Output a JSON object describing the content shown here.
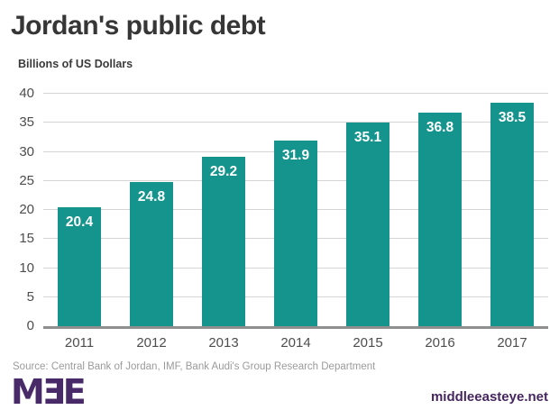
{
  "header": {
    "title": "Jordan's public debt",
    "subtitle": "Billions of US Dollars"
  },
  "chart_data": {
    "type": "bar",
    "title": "Jordan's public debt",
    "xlabel": "",
    "ylabel": "Billions of US Dollars",
    "categories": [
      "2011",
      "2012",
      "2013",
      "2014",
      "2015",
      "2016",
      "2017"
    ],
    "values": [
      20.4,
      24.8,
      29.2,
      31.9,
      35.1,
      36.8,
      38.5
    ],
    "value_labels": [
      "20.4",
      "24.8",
      "29.2",
      "31.9",
      "35.1",
      "36.8",
      "38.5"
    ],
    "ylim": [
      0,
      40
    ],
    "yticks": [
      0,
      5,
      10,
      15,
      20,
      25,
      30,
      35,
      40
    ],
    "grid": true,
    "legend": "none",
    "bar_color": "#14948d",
    "value_label_color": "#ffffff"
  },
  "footer": {
    "source": "Source: Central Bank of Jordan, IMF, Bank Audi's Group Research Department",
    "logo_text": "MƎE",
    "website": "middleeasteye.net"
  },
  "colors": {
    "accent_teal": "#14948d",
    "brand_purple": "#482a68",
    "title_text": "#363636",
    "axis_text": "#4d4d4d",
    "gridline": "#d4d4d4",
    "axis_line": "#8f8f8f",
    "source_text": "#9b9b9b",
    "background": "#ffffff"
  }
}
